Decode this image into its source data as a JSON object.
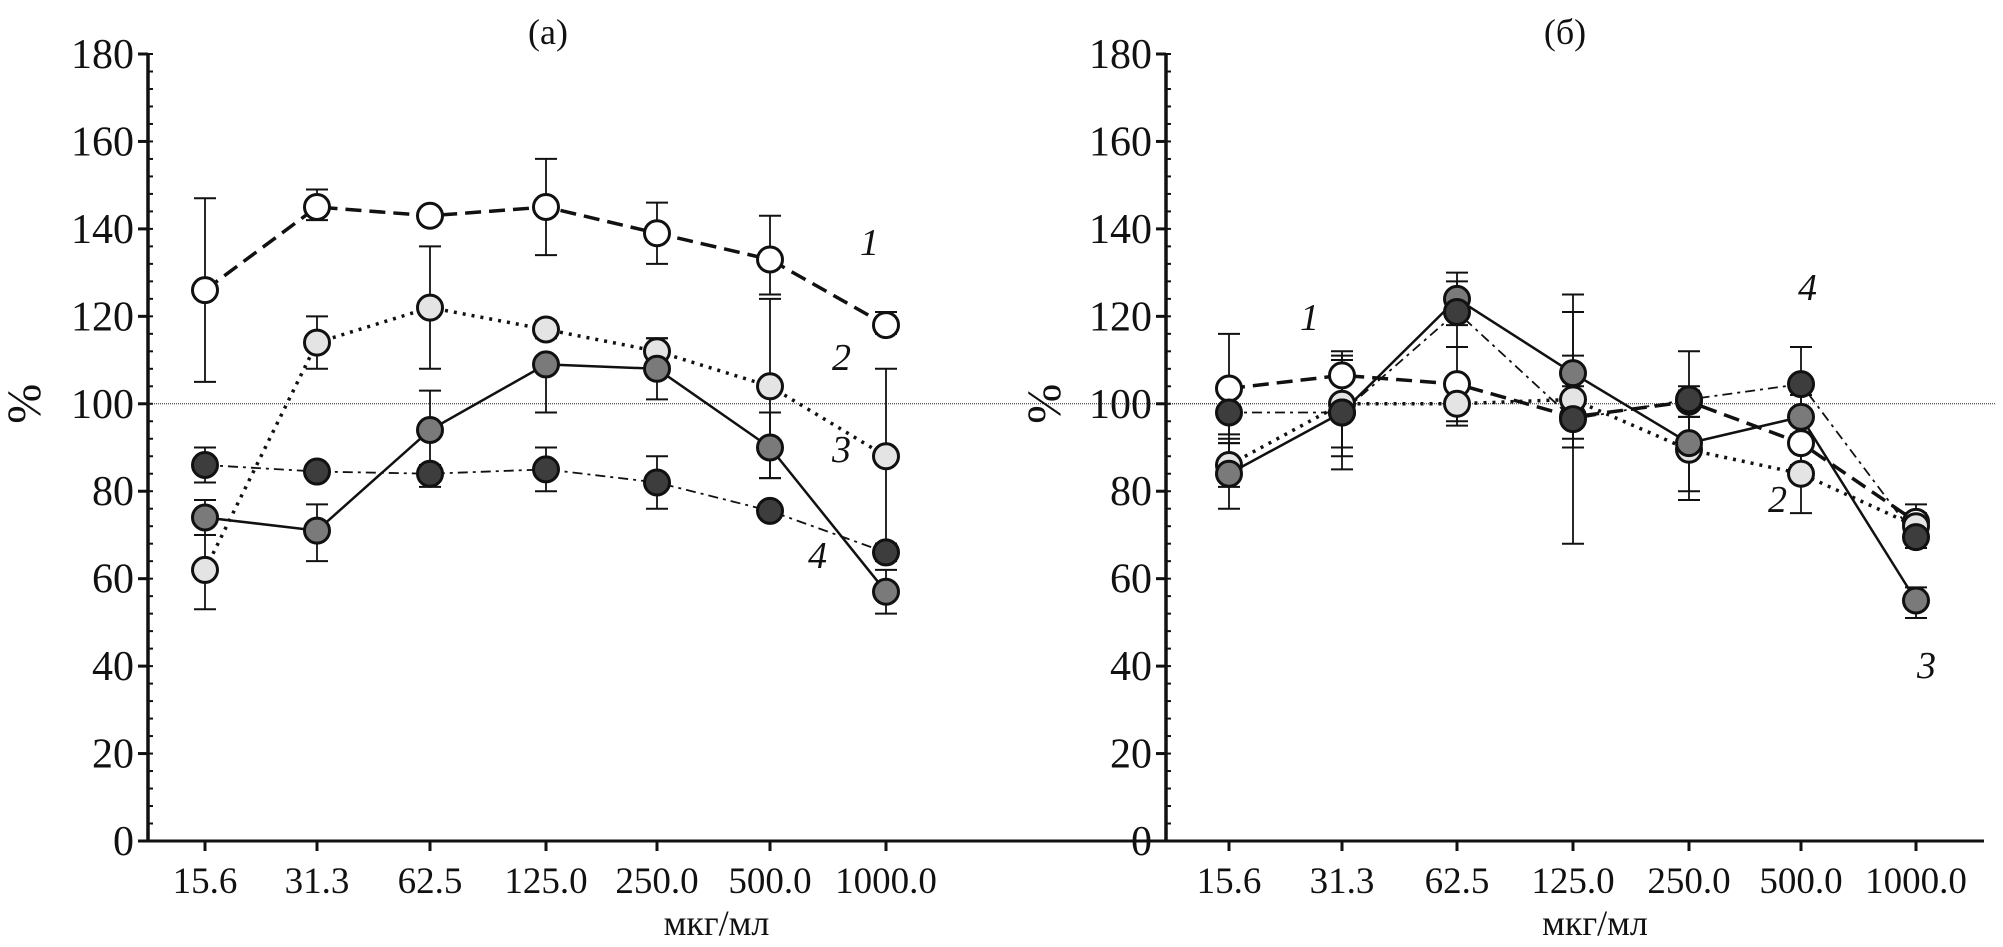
{
  "chart_data": [
    {
      "type": "line",
      "title": "(a)",
      "xlabel": "мкг/мл",
      "ylabel": "%",
      "categories": [
        "15.6",
        "31.3",
        "62.5",
        "125.0",
        "250.0",
        "500.0",
        "1000.0"
      ],
      "ylim": [
        0,
        180
      ],
      "yticks": [
        0,
        20,
        40,
        60,
        80,
        100,
        120,
        140,
        160,
        180
      ],
      "reference_line": 100,
      "series": [
        {
          "name": "1",
          "style": "dashed",
          "marker_fill": "#ffffff",
          "values": [
            126,
            145,
            143,
            145,
            139,
            133,
            118
          ],
          "err_low": [
            105,
            142,
            142,
            134,
            132,
            125,
            116
          ],
          "err_high": [
            147,
            149,
            144,
            156,
            146,
            143,
            121
          ]
        },
        {
          "name": "2",
          "style": "dotted",
          "marker_fill": "#e4e4e4",
          "values": [
            62,
            114,
            122,
            117,
            112,
            104,
            88
          ],
          "err_low": [
            53,
            108,
            108,
            115,
            110,
            83,
            68
          ],
          "err_high": [
            70,
            120,
            136,
            119,
            115,
            124,
            108
          ]
        },
        {
          "name": "3",
          "style": "solid",
          "marker_fill": "#7a7a7a",
          "values": [
            74,
            71,
            94,
            109,
            108,
            90,
            57
          ],
          "err_low": [
            70,
            64,
            85,
            98,
            101,
            83,
            52
          ],
          "err_high": [
            78,
            77,
            103,
            110,
            115,
            98,
            62
          ]
        },
        {
          "name": "4",
          "style": "dashdot",
          "marker_fill": "#3d3d3d",
          "values": [
            86,
            84.5,
            84,
            85,
            82,
            75.5,
            66
          ],
          "err_low": [
            82,
            83,
            81,
            80,
            76,
            74,
            64
          ],
          "err_high": [
            90,
            86,
            86,
            90,
            88,
            77,
            68
          ]
        }
      ]
    },
    {
      "type": "line",
      "title": "(б)",
      "xlabel": "мкг/мл",
      "ylabel": "%",
      "categories": [
        "15.6",
        "31.3",
        "62.5",
        "125.0",
        "250.0",
        "500.0",
        "1000.0"
      ],
      "ylim": [
        0,
        180
      ],
      "yticks": [
        0,
        20,
        40,
        60,
        80,
        100,
        120,
        140,
        160,
        180
      ],
      "reference_line": 100,
      "series": [
        {
          "name": "1",
          "style": "dashed",
          "marker_fill": "#ffffff",
          "values": [
            103.5,
            106.5,
            104.5,
            97,
            100.5,
            91,
            73
          ],
          "err_low": [
            91,
            100,
            96,
            90,
            97,
            86,
            70
          ],
          "err_high": [
            116,
            112,
            113,
            104,
            104,
            96,
            77
          ]
        },
        {
          "name": "2",
          "style": "dotted",
          "marker_fill": "#e4e4e4",
          "values": [
            86,
            100,
            100,
            101,
            89.5,
            84,
            72
          ],
          "err_low": [
            81,
            88,
            95,
            92,
            80,
            75,
            70
          ],
          "err_high": [
            91,
            110,
            105,
            121,
            99,
            93,
            75
          ]
        },
        {
          "name": "3",
          "style": "solid",
          "marker_fill": "#7a7a7a",
          "values": [
            84,
            98,
            124,
            107,
            91,
            97,
            55
          ],
          "err_low": [
            76,
            85,
            118,
            68,
            78,
            92,
            51
          ],
          "err_high": [
            92,
            111,
            130,
            125,
            103,
            102,
            58
          ]
        },
        {
          "name": "4",
          "style": "dashdot",
          "marker_fill": "#3d3d3d",
          "values": [
            98,
            98,
            121,
            96.5,
            101,
            104.5,
            69.5
          ],
          "err_low": [
            93,
            90,
            113,
            90,
            97,
            97,
            67
          ],
          "err_high": [
            103,
            106,
            128,
            111,
            112,
            113,
            72
          ]
        }
      ]
    }
  ]
}
